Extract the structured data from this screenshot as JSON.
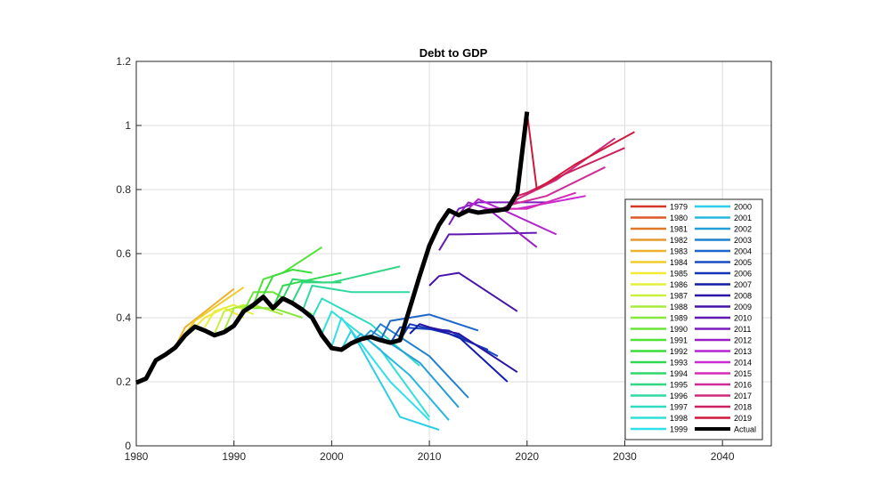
{
  "chart_data": {
    "type": "line",
    "title": "Debt to GDP",
    "xlabel": "",
    "ylabel": "",
    "xlim": [
      1980,
      2045
    ],
    "ylim": [
      0,
      1.2
    ],
    "xticks": [
      "1980",
      "1990",
      "2000",
      "2010",
      "2020",
      "2030",
      "2040"
    ],
    "yticks": [
      "0",
      "0.2",
      "0.4",
      "0.6",
      "0.8",
      "1",
      "1.2"
    ],
    "grid": true,
    "legend_position": "right-inside",
    "series": [
      {
        "name": "1979",
        "color": "#d4362a",
        "x": [],
        "y": []
      },
      {
        "name": "1980",
        "color": "#dc5a28",
        "x": [],
        "y": []
      },
      {
        "name": "1981",
        "color": "#e07828",
        "x": [],
        "y": []
      },
      {
        "name": "1982",
        "color": "#e69a2e",
        "x": [],
        "y": []
      },
      {
        "name": "1983",
        "color": "#ecb22c",
        "x": [
          1984,
          1985,
          1990
        ],
        "y": [
          0.31,
          0.37,
          0.49
        ]
      },
      {
        "name": "1984",
        "color": "#f0cc2a",
        "x": [
          1985,
          1986,
          1991
        ],
        "y": [
          0.35,
          0.39,
          0.495
        ]
      },
      {
        "name": "1985",
        "color": "#f2ea30",
        "x": [
          1986,
          1987,
          1989,
          1991
        ],
        "y": [
          0.37,
          0.4,
          0.43,
          0.4
        ]
      },
      {
        "name": "1986",
        "color": "#e4f03a",
        "x": [
          1987,
          1988,
          1990,
          1992
        ],
        "y": [
          0.37,
          0.42,
          0.44,
          0.41
        ]
      },
      {
        "name": "1987",
        "color": "#c8f03c",
        "x": [
          1988,
          1989,
          1991,
          1993
        ],
        "y": [
          0.35,
          0.42,
          0.44,
          0.43
        ]
      },
      {
        "name": "1988",
        "color": "#a8ec3a",
        "x": [
          1989,
          1990,
          1992,
          1995
        ],
        "y": [
          0.36,
          0.43,
          0.44,
          0.41
        ]
      },
      {
        "name": "1989",
        "color": "#86e83a",
        "x": [
          1990,
          1991,
          1994,
          1997
        ],
        "y": [
          0.38,
          0.43,
          0.43,
          0.4
        ]
      },
      {
        "name": "1990",
        "color": "#6ae638",
        "x": [
          1991,
          1992,
          1994,
          1998
        ],
        "y": [
          0.42,
          0.48,
          0.48,
          0.41
        ]
      },
      {
        "name": "1991",
        "color": "#50e236",
        "x": [
          1992,
          1993,
          1995,
          1999
        ],
        "y": [
          0.44,
          0.52,
          0.54,
          0.62
        ]
      },
      {
        "name": "1992",
        "color": "#3ade3a",
        "x": [
          1993,
          1994,
          1996,
          1998
        ],
        "y": [
          0.47,
          0.53,
          0.55,
          0.54
        ]
      },
      {
        "name": "1993",
        "color": "#30da50",
        "x": [
          1994,
          1995,
          1998,
          2001
        ],
        "y": [
          0.43,
          0.5,
          0.52,
          0.54
        ]
      },
      {
        "name": "1994",
        "color": "#30d668",
        "x": [
          1995,
          1996,
          1999,
          2001
        ],
        "y": [
          0.46,
          0.52,
          0.51,
          0.51
        ]
      },
      {
        "name": "1995",
        "color": "#30d684",
        "x": [
          1996,
          1997,
          2000,
          2007
        ],
        "y": [
          0.45,
          0.51,
          0.51,
          0.56
        ]
      },
      {
        "name": "1996",
        "color": "#30d8a2",
        "x": [
          1997,
          1998,
          2002,
          2008
        ],
        "y": [
          0.42,
          0.5,
          0.48,
          0.48
        ]
      },
      {
        "name": "1997",
        "color": "#30dcc0",
        "x": [
          1998,
          1999,
          2004,
          2009
        ],
        "y": [
          0.4,
          0.46,
          0.38,
          0.25
        ]
      },
      {
        "name": "1998",
        "color": "#30e0d8",
        "x": [
          1999,
          2000,
          2005,
          2010
        ],
        "y": [
          0.35,
          0.42,
          0.3,
          0.09
        ]
      },
      {
        "name": "1999",
        "color": "#30e0ec",
        "x": [
          2000,
          2001,
          2006,
          2010
        ],
        "y": [
          0.31,
          0.4,
          0.2,
          0.08
        ]
      },
      {
        "name": "2000",
        "color": "#2ccfe6",
        "x": [
          2001,
          2002,
          2007,
          2011
        ],
        "y": [
          0.3,
          0.36,
          0.09,
          0.05
        ]
      },
      {
        "name": "2001",
        "color": "#28b8e0",
        "x": [
          2002,
          2003,
          2008,
          2012
        ],
        "y": [
          0.32,
          0.35,
          0.22,
          0.08
        ]
      },
      {
        "name": "2002",
        "color": "#249ed6",
        "x": [
          2003,
          2004,
          2009,
          2013
        ],
        "y": [
          0.33,
          0.36,
          0.26,
          0.12
        ]
      },
      {
        "name": "2003",
        "color": "#2080d0",
        "x": [
          2004,
          2005,
          2010,
          2014
        ],
        "y": [
          0.34,
          0.38,
          0.28,
          0.15
        ]
      },
      {
        "name": "2004",
        "color": "#1c66c8",
        "x": [
          2005,
          2006,
          2010,
          2015
        ],
        "y": [
          0.33,
          0.39,
          0.41,
          0.36
        ]
      },
      {
        "name": "2005",
        "color": "#184cc0",
        "x": [
          2006,
          2007,
          2012,
          2017
        ],
        "y": [
          0.32,
          0.37,
          0.36,
          0.28
        ]
      },
      {
        "name": "2006",
        "color": "#1434b8",
        "x": [
          2007,
          2008,
          2012,
          2016
        ],
        "y": [
          0.33,
          0.38,
          0.35,
          0.3
        ]
      },
      {
        "name": "2007",
        "color": "#141ea8",
        "x": [
          2008,
          2009,
          2013,
          2018
        ],
        "y": [
          0.35,
          0.38,
          0.34,
          0.2
        ]
      },
      {
        "name": "2008",
        "color": "#2a14a6",
        "x": [
          2009,
          2010,
          2013,
          2019
        ],
        "y": [
          0.38,
          0.37,
          0.35,
          0.23
        ]
      },
      {
        "name": "2009",
        "color": "#4414aa",
        "x": [
          2010,
          2011,
          2013,
          2019
        ],
        "y": [
          0.5,
          0.53,
          0.54,
          0.42
        ]
      },
      {
        "name": "2010",
        "color": "#6018b4",
        "x": [
          2011,
          2012,
          2013,
          2021
        ],
        "y": [
          0.61,
          0.66,
          0.66,
          0.665
        ]
      },
      {
        "name": "2011",
        "color": "#7c1cbc",
        "x": [
          2012,
          2013,
          2015,
          2022
        ],
        "y": [
          0.69,
          0.74,
          0.76,
          0.76
        ]
      },
      {
        "name": "2012",
        "color": "#9a20c6",
        "x": [
          2013,
          2014,
          2016,
          2021
        ],
        "y": [
          0.72,
          0.76,
          0.74,
          0.62
        ]
      },
      {
        "name": "2013",
        "color": "#b424ce",
        "x": [
          2014,
          2015,
          2018,
          2023
        ],
        "y": [
          0.74,
          0.77,
          0.73,
          0.66
        ]
      },
      {
        "name": "2014",
        "color": "#cc28d4",
        "x": [
          2015,
          2016,
          2019,
          2026
        ],
        "y": [
          0.73,
          0.74,
          0.74,
          0.78
        ]
      },
      {
        "name": "2015",
        "color": "#d42cb8",
        "x": [
          2016,
          2017,
          2020,
          2025
        ],
        "y": [
          0.73,
          0.74,
          0.74,
          0.79
        ]
      },
      {
        "name": "2016",
        "color": "#d02c98",
        "x": [
          2017,
          2018,
          2022,
          2028
        ],
        "y": [
          0.73,
          0.75,
          0.78,
          0.87
        ]
      },
      {
        "name": "2017",
        "color": "#cc2c7c",
        "x": [
          2018,
          2019,
          2023,
          2029
        ],
        "y": [
          0.74,
          0.77,
          0.83,
          0.96
        ]
      },
      {
        "name": "2018",
        "color": "#cc2060",
        "x": [
          2019,
          2020,
          2024,
          2030
        ],
        "y": [
          0.78,
          0.79,
          0.85,
          0.93
        ]
      },
      {
        "name": "2019",
        "color": "#d0183c",
        "x": [
          2020,
          2021,
          2025,
          2031
        ],
        "y": [
          1.04,
          0.8,
          0.88,
          0.98
        ]
      },
      {
        "name": "Actual",
        "color": "#000000",
        "x": [
          1980,
          1981,
          1982,
          1983,
          1984,
          1985,
          1986,
          1987,
          1988,
          1989,
          1990,
          1991,
          1992,
          1993,
          1994,
          1995,
          1996,
          1997,
          1998,
          1999,
          2000,
          2001,
          2002,
          2003,
          2004,
          2005,
          2006,
          2007,
          2008,
          2009,
          2010,
          2011,
          2012,
          2013,
          2014,
          2015,
          2016,
          2017,
          2018,
          2019,
          2020
        ],
        "y": [
          0.197,
          0.21,
          0.267,
          0.285,
          0.307,
          0.345,
          0.372,
          0.36,
          0.345,
          0.355,
          0.375,
          0.42,
          0.44,
          0.465,
          0.43,
          0.46,
          0.445,
          0.425,
          0.4,
          0.345,
          0.305,
          0.3,
          0.32,
          0.333,
          0.34,
          0.33,
          0.322,
          0.33,
          0.43,
          0.53,
          0.625,
          0.69,
          0.735,
          0.72,
          0.735,
          0.728,
          0.732,
          0.735,
          0.74,
          0.79,
          1.043
        ]
      }
    ]
  }
}
